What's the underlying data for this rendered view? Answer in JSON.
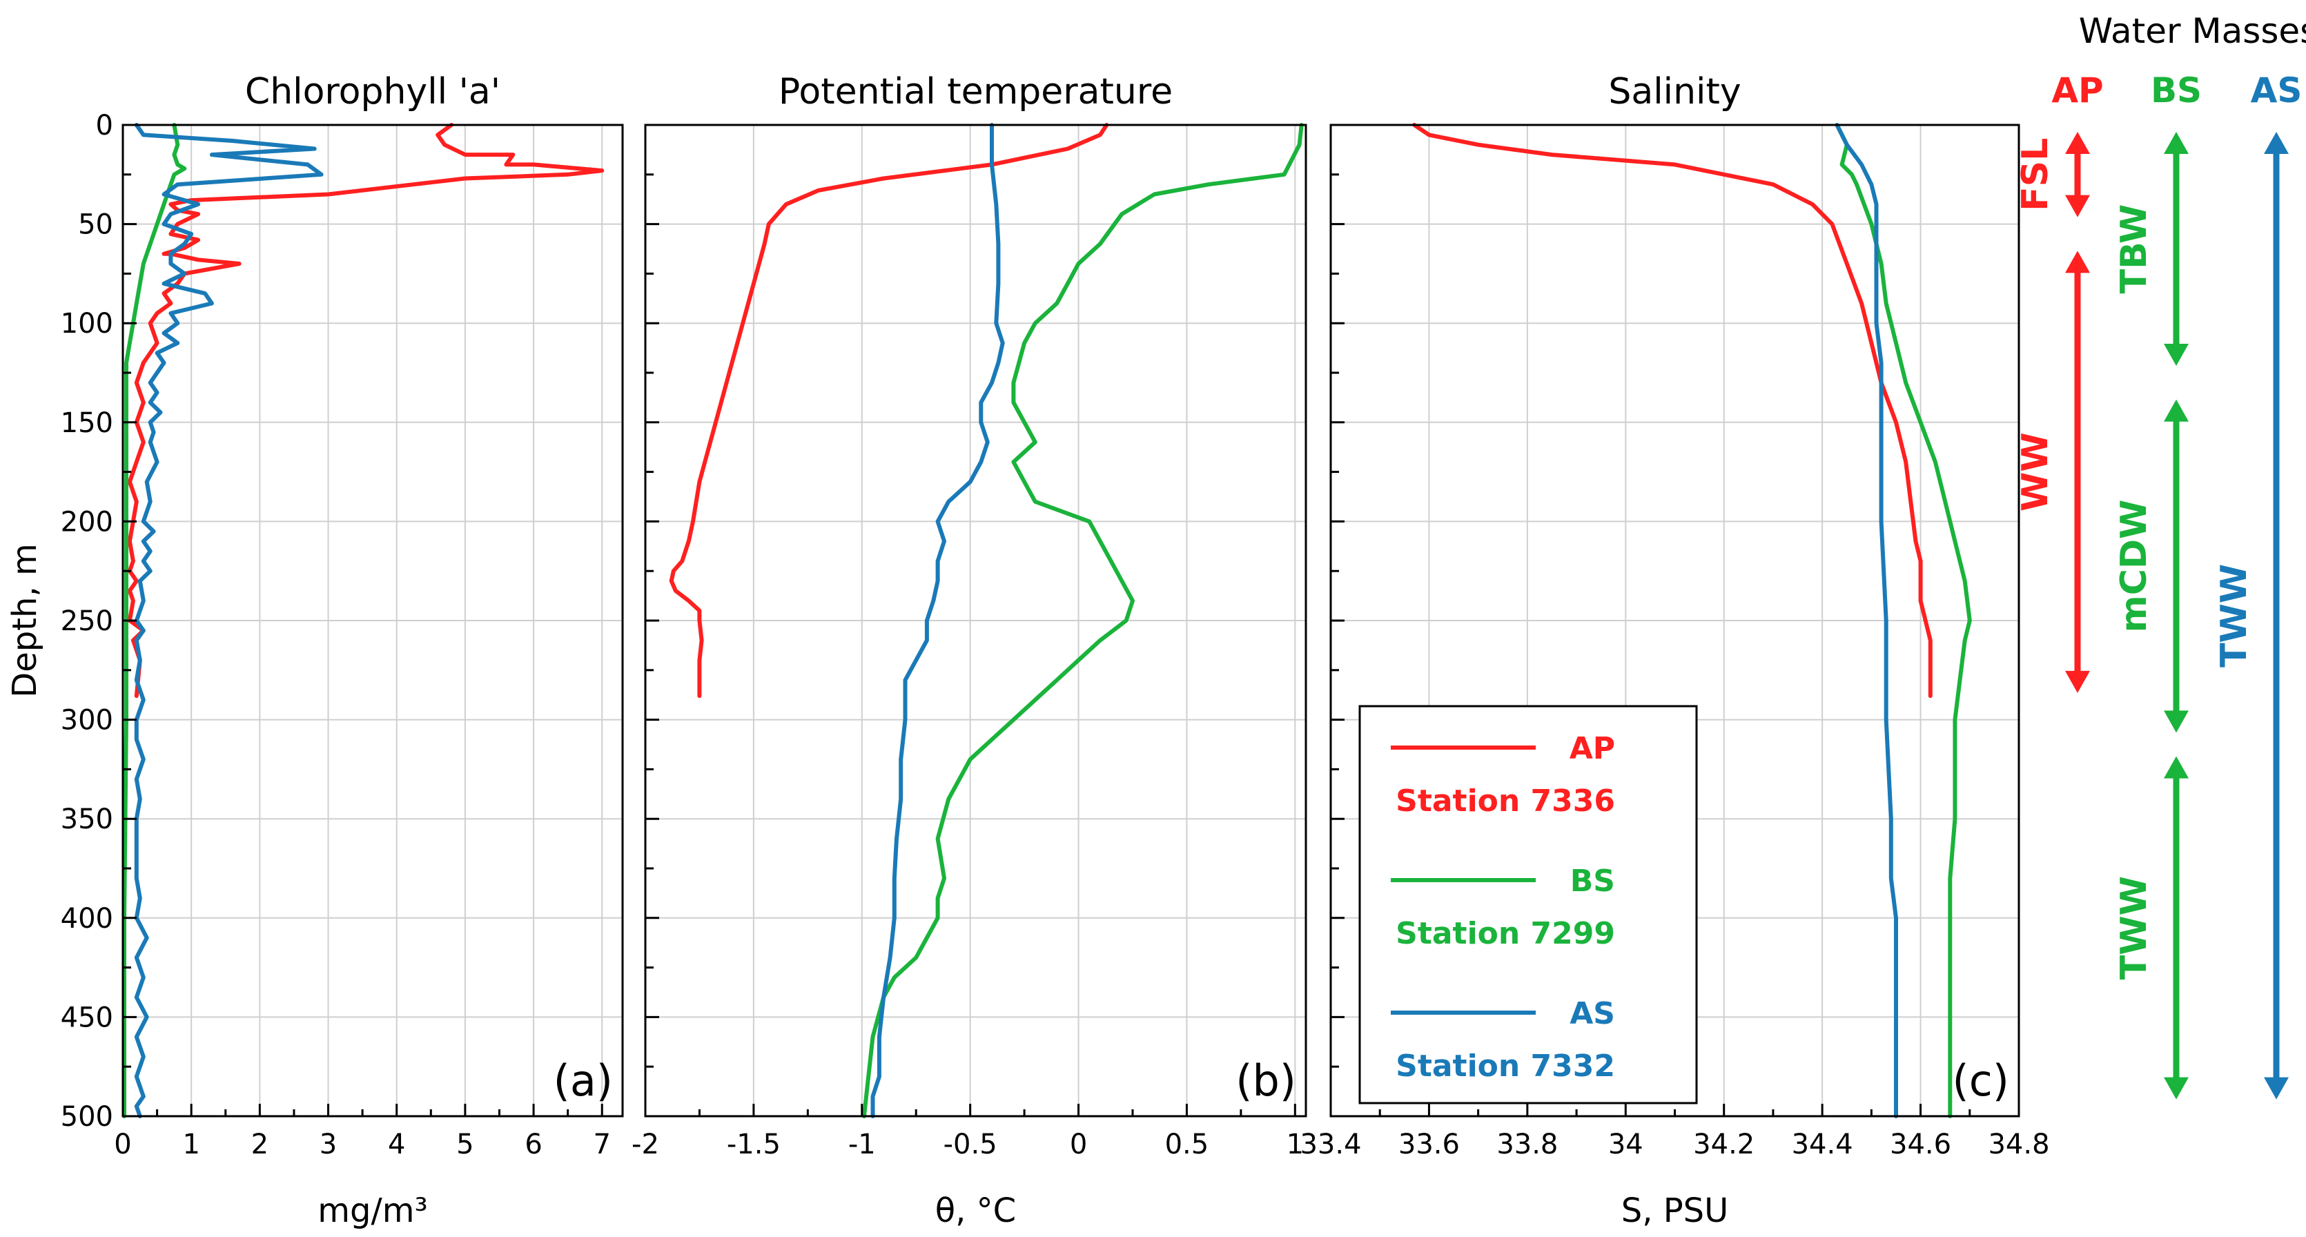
{
  "colors": {
    "AP": "#ff2020",
    "BS": "#1ab33b",
    "AS": "#1a7ab8",
    "grid": "#cfcfcf"
  },
  "y_axis": {
    "label": "Depth, m",
    "ticks": [
      "0",
      "50",
      "100",
      "150",
      "200",
      "250",
      "300",
      "350",
      "400",
      "450",
      "500"
    ]
  },
  "chart_data": [
    {
      "type": "line",
      "panel": "a",
      "title": "Chlorophyll 'a'",
      "letter": "(a)",
      "xlabel": "mg/m³",
      "ylabel": "Depth, m",
      "xlim": [
        0,
        7.3
      ],
      "ylim": [
        500,
        0
      ],
      "xticks": [
        0,
        1,
        2,
        3,
        4,
        5,
        6,
        7
      ],
      "xtick_labels": [
        "0",
        "1",
        "2",
        "3",
        "4",
        "5",
        "6",
        "7"
      ],
      "series": [
        {
          "name": "AP",
          "x": [
            4.8,
            4.6,
            4.7,
            5.0,
            5.7,
            5.6,
            6.0,
            7.0,
            6.5,
            5.0,
            3.0,
            1.0,
            0.7,
            0.8,
            1.1,
            0.8,
            0.7,
            1.1,
            0.9,
            0.6,
            0.7,
            1.1,
            1.7,
            0.9,
            0.8,
            0.6,
            0.7,
            0.5,
            0.4,
            0.5,
            0.3,
            0.2,
            0.3,
            0.2,
            0.3,
            0.2,
            0.1,
            0.2,
            0.15,
            0.1,
            0.15,
            0.1,
            0.2,
            0.1,
            0.15,
            0.1,
            0.3,
            0.15,
            0.25,
            0.2
          ],
          "y": [
            0,
            5,
            10,
            15,
            15,
            20,
            20,
            23,
            25,
            27,
            35,
            38,
            40,
            43,
            45,
            50,
            55,
            58,
            62,
            65,
            65,
            68,
            70,
            75,
            80,
            85,
            90,
            95,
            100,
            110,
            120,
            130,
            140,
            150,
            160,
            170,
            180,
            190,
            200,
            210,
            220,
            225,
            230,
            235,
            240,
            250,
            255,
            260,
            270,
            288
          ]
        },
        {
          "name": "BS",
          "x": [
            0.75,
            0.8,
            0.75,
            0.8,
            0.9,
            0.75,
            0.7,
            0.6,
            0.5,
            0.4,
            0.3,
            0.25,
            0.2,
            0.15,
            0.1,
            0.05,
            0.05,
            0.05,
            0.05,
            0.02,
            0.02,
            0.02
          ],
          "y": [
            0,
            10,
            15,
            20,
            22,
            25,
            30,
            40,
            50,
            60,
            70,
            80,
            90,
            100,
            110,
            120,
            150,
            200,
            300,
            400,
            450,
            500
          ]
        },
        {
          "name": "AS",
          "x": [
            0.2,
            0.3,
            1.6,
            2.8,
            1.3,
            2.7,
            2.9,
            0.8,
            0.6,
            1.1,
            0.7,
            0.6,
            1.0,
            0.9,
            0.7,
            0.7,
            0.9,
            0.6,
            1.2,
            1.3,
            0.7,
            0.8,
            0.6,
            0.8,
            0.5,
            0.6,
            0.5,
            0.4,
            0.5,
            0.4,
            0.55,
            0.4,
            0.45,
            0.4,
            0.5,
            0.35,
            0.4,
            0.3,
            0.45,
            0.3,
            0.4,
            0.3,
            0.4,
            0.25,
            0.3,
            0.2,
            0.3,
            0.2,
            0.25,
            0.2,
            0.3,
            0.2,
            0.2,
            0.3,
            0.2,
            0.25,
            0.2,
            0.2,
            0.2,
            0.2,
            0.25,
            0.2,
            0.35,
            0.2,
            0.3,
            0.2,
            0.35,
            0.2,
            0.3,
            0.2,
            0.3,
            0.2,
            0.25
          ],
          "y": [
            0,
            5,
            8,
            12,
            15,
            20,
            25,
            30,
            35,
            40,
            45,
            50,
            55,
            60,
            65,
            70,
            75,
            80,
            85,
            90,
            95,
            100,
            105,
            110,
            115,
            120,
            125,
            130,
            135,
            140,
            145,
            150,
            155,
            160,
            170,
            180,
            190,
            200,
            205,
            210,
            215,
            220,
            225,
            230,
            240,
            250,
            255,
            260,
            270,
            280,
            290,
            300,
            310,
            320,
            330,
            340,
            350,
            360,
            370,
            380,
            390,
            400,
            410,
            420,
            430,
            440,
            450,
            460,
            470,
            480,
            490,
            495,
            500
          ]
        }
      ]
    },
    {
      "type": "line",
      "panel": "b",
      "title": "Potential temperature",
      "letter": "(b)",
      "xlabel": "θ, °C",
      "ylabel": "Depth, m",
      "xlim": [
        -2,
        1.05
      ],
      "ylim": [
        500,
        0
      ],
      "xticks": [
        -2,
        -1.5,
        -1,
        -0.5,
        0,
        0.5,
        1
      ],
      "xtick_labels": [
        "-2",
        "-1.5",
        "-1",
        "-0.5",
        "0",
        "0.5",
        "1"
      ],
      "series": [
        {
          "name": "AP",
          "x": [
            0.13,
            0.1,
            -0.05,
            -0.4,
            -0.9,
            -1.2,
            -1.35,
            -1.43,
            -1.45,
            -1.5,
            -1.55,
            -1.6,
            -1.65,
            -1.7,
            -1.75,
            -1.78,
            -1.8,
            -1.83,
            -1.87,
            -1.88,
            -1.86,
            -1.8,
            -1.75,
            -1.75,
            -1.74,
            -1.75,
            -1.75
          ],
          "y": [
            0,
            5,
            12,
            20,
            27,
            33,
            40,
            50,
            60,
            80,
            100,
            120,
            140,
            160,
            180,
            200,
            210,
            220,
            225,
            230,
            235,
            240,
            245,
            250,
            260,
            270,
            288
          ]
        },
        {
          "name": "BS",
          "x": [
            1.03,
            1.02,
            0.95,
            0.6,
            0.35,
            0.2,
            0.1,
            0,
            -0.05,
            -0.1,
            -0.2,
            -0.25,
            -0.3,
            -0.3,
            -0.25,
            -0.2,
            -0.3,
            -0.25,
            -0.2,
            0.05,
            0.1,
            0.2,
            0.25,
            0.22,
            0.1,
            0,
            -0.1,
            -0.2,
            -0.3,
            -0.4,
            -0.5,
            -0.6,
            -0.65,
            -0.62,
            -0.65,
            -0.65,
            -0.7,
            -0.75,
            -0.85,
            -0.9,
            -0.95,
            -0.97,
            -0.99
          ],
          "y": [
            0,
            10,
            25,
            30,
            35,
            45,
            60,
            70,
            80,
            90,
            100,
            110,
            130,
            140,
            150,
            160,
            170,
            180,
            190,
            200,
            210,
            230,
            240,
            250,
            260,
            270,
            280,
            290,
            300,
            310,
            320,
            340,
            360,
            380,
            390,
            400,
            410,
            420,
            430,
            440,
            460,
            480,
            500
          ]
        },
        {
          "name": "AS",
          "x": [
            -0.4,
            -0.4,
            -0.38,
            -0.37,
            -0.37,
            -0.38,
            -0.35,
            -0.37,
            -0.4,
            -0.45,
            -0.45,
            -0.42,
            -0.45,
            -0.5,
            -0.6,
            -0.65,
            -0.62,
            -0.65,
            -0.65,
            -0.67,
            -0.7,
            -0.7,
            -0.75,
            -0.8,
            -0.8,
            -0.82,
            -0.82,
            -0.84,
            -0.85,
            -0.85,
            -0.87,
            -0.9,
            -0.92,
            -0.92,
            -0.95,
            -0.95
          ],
          "y": [
            0,
            20,
            40,
            60,
            80,
            100,
            110,
            120,
            130,
            140,
            150,
            160,
            170,
            180,
            190,
            200,
            210,
            220,
            230,
            240,
            250,
            260,
            270,
            280,
            300,
            320,
            340,
            360,
            380,
            400,
            420,
            440,
            460,
            480,
            490,
            500
          ]
        }
      ]
    },
    {
      "type": "line",
      "panel": "c",
      "title": "Salinity",
      "letter": "(c)",
      "xlabel": "S, PSU",
      "ylabel": "Depth, m",
      "xlim": [
        33.4,
        34.8
      ],
      "ylim": [
        500,
        0
      ],
      "xticks": [
        33.4,
        33.6,
        33.8,
        34,
        34.2,
        34.4,
        34.6,
        34.8
      ],
      "xtick_labels": [
        "33.4",
        "33.6",
        "33.8",
        "34",
        "34.2",
        "34.4",
        "34.6",
        "34.8"
      ],
      "series": [
        {
          "name": "AP",
          "x": [
            33.57,
            33.6,
            33.7,
            33.85,
            34.1,
            34.3,
            34.38,
            34.42,
            34.45,
            34.48,
            34.5,
            34.52,
            34.55,
            34.57,
            34.58,
            34.59,
            34.6,
            34.6,
            34.6,
            34.61,
            34.62,
            34.62,
            34.62
          ],
          "y": [
            0,
            5,
            10,
            15,
            20,
            30,
            40,
            50,
            70,
            90,
            110,
            130,
            150,
            170,
            190,
            210,
            220,
            230,
            240,
            250,
            260,
            270,
            288
          ]
        },
        {
          "name": "BS",
          "x": [
            34.43,
            34.45,
            34.44,
            34.46,
            34.47,
            34.5,
            34.52,
            34.53,
            34.55,
            34.57,
            34.6,
            34.63,
            34.65,
            34.67,
            34.69,
            34.7,
            34.69,
            34.68,
            34.67,
            34.67,
            34.66,
            34.66,
            34.66,
            34.66,
            34.66
          ],
          "y": [
            0,
            10,
            20,
            25,
            30,
            50,
            70,
            90,
            110,
            130,
            150,
            170,
            190,
            210,
            230,
            250,
            260,
            280,
            300,
            350,
            380,
            400,
            420,
            450,
            500
          ]
        },
        {
          "name": "AS",
          "x": [
            34.43,
            34.45,
            34.48,
            34.5,
            34.51,
            34.51,
            34.51,
            34.52,
            34.52,
            34.52,
            34.53,
            34.53,
            34.54,
            34.54,
            34.55,
            34.55,
            34.55,
            34.55
          ],
          "y": [
            0,
            10,
            20,
            30,
            40,
            60,
            100,
            120,
            150,
            200,
            250,
            300,
            350,
            380,
            400,
            450,
            480,
            500
          ]
        }
      ]
    }
  ],
  "legend": {
    "entries": [
      {
        "name": "AP",
        "station": "Station 7336"
      },
      {
        "name": "BS",
        "station": "Station 7299"
      },
      {
        "name": "AS",
        "station": "Station 7332"
      }
    ]
  },
  "water_masses": {
    "title": "Water Masses",
    "columns": [
      {
        "name": "AP",
        "segments": [
          {
            "label": "FSL",
            "top_m": 0,
            "bottom_m": 50
          },
          {
            "label": "WW",
            "top_m": 60,
            "bottom_m": 290
          }
        ]
      },
      {
        "name": "BS",
        "segments": [
          {
            "label": "TBW",
            "top_m": 0,
            "bottom_m": 125
          },
          {
            "label": "mCDW",
            "top_m": 135,
            "bottom_m": 310
          },
          {
            "label": "TWW",
            "top_m": 315,
            "bottom_m": 495
          }
        ]
      },
      {
        "name": "AS",
        "segments": [
          {
            "label": "TWW",
            "top_m": 0,
            "bottom_m": 495
          }
        ]
      }
    ]
  }
}
